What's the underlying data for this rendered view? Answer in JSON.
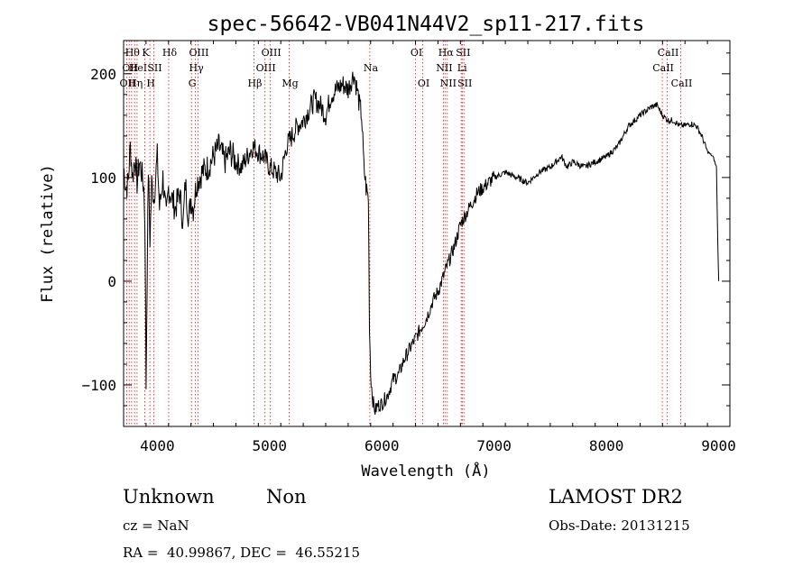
{
  "chart_data": {
    "type": "line",
    "title": "spec-56642-VB041N44V2_sp11-217.fits",
    "xlabel": "Wavelength (Å)",
    "ylabel": "Flux (relative)",
    "xlim": [
      3700,
      9100
    ],
    "ylim": [
      -140,
      232
    ],
    "xticks": [
      "4000",
      "5000",
      "6000",
      "7000",
      "8000",
      "9000"
    ],
    "yticks": [
      "−100",
      "0",
      "100",
      "200"
    ],
    "grid": false,
    "legend": "none",
    "line_color": "#000000",
    "marker_color": "#ff0000",
    "series": [
      {
        "x": [
          3700,
          3720,
          3740,
          3760,
          3780,
          3800,
          3820,
          3840,
          3860,
          3880,
          3890,
          3900,
          3920,
          3935,
          3950,
          3970,
          4000,
          4020,
          4050,
          4080,
          4100,
          4130,
          4160,
          4200,
          4230,
          4250,
          4280,
          4300,
          4320,
          4350,
          4400,
          4450,
          4500,
          4550,
          4600,
          4650,
          4700,
          4750,
          4800,
          4850,
          4900,
          4950,
          5000,
          5050,
          5100,
          5150,
          5200,
          5250,
          5300,
          5350,
          5400,
          5450,
          5500,
          5550,
          5600,
          5650,
          5700,
          5750,
          5780,
          5800,
          5820,
          5840,
          5860,
          5880,
          5890,
          5900,
          5920,
          5940,
          5960,
          6000,
          6050,
          6100,
          6150,
          6200,
          6250,
          6300,
          6350,
          6400,
          6450,
          6500,
          6550,
          6600,
          6650,
          6700,
          6750,
          6800,
          6850,
          6900,
          6950,
          7000,
          7100,
          7200,
          7300,
          7400,
          7500,
          7600,
          7650,
          7700,
          7800,
          7900,
          8000,
          8100,
          8200,
          8300,
          8400,
          8450,
          8500,
          8550,
          8600,
          8650,
          8700,
          8750,
          8800,
          8850,
          8900,
          8950,
          8980,
          8990,
          9000
        ],
        "y": [
          110,
          90,
          95,
          130,
          100,
          120,
          95,
          115,
          105,
          90,
          60,
          -100,
          110,
          40,
          95,
          80,
          120,
          70,
          100,
          60,
          90,
          80,
          70,
          85,
          55,
          95,
          60,
          80,
          70,
          95,
          105,
          110,
          120,
          130,
          115,
          125,
          115,
          110,
          120,
          130,
          125,
          120,
          110,
          105,
          100,
          130,
          140,
          150,
          155,
          165,
          175,
          170,
          160,
          180,
          185,
          190,
          185,
          200,
          185,
          170,
          160,
          110,
          90,
          80,
          -40,
          -90,
          -115,
          -125,
          -120,
          -118,
          -110,
          -95,
          -90,
          -75,
          -65,
          -55,
          -45,
          -35,
          -20,
          -10,
          5,
          20,
          35,
          55,
          65,
          75,
          85,
          90,
          95,
          100,
          105,
          100,
          95,
          105,
          110,
          120,
          110,
          115,
          110,
          115,
          120,
          130,
          150,
          160,
          168,
          170,
          160,
          155,
          155,
          150,
          150,
          152,
          150,
          140,
          125,
          120,
          110,
          50,
          0
        ]
      }
    ],
    "line_markers": [
      {
        "wavelength": 3727,
        "label": "OII",
        "row": 2
      },
      {
        "wavelength": 3750,
        "label": "OII",
        "row": 1
      },
      {
        "wavelength": 3771,
        "label": "Hθ",
        "row": 0
      },
      {
        "wavelength": 3798,
        "label": "Hη",
        "row": 2
      },
      {
        "wavelength": 3820,
        "label": "HeI",
        "row": 1
      },
      {
        "wavelength": 3889,
        "label": "K",
        "row": 0
      },
      {
        "wavelength": 3934,
        "label": "H",
        "row": 2
      },
      {
        "wavelength": 3969,
        "label": "SII",
        "row": 1
      },
      {
        "wavelength": 4102,
        "label": "Hδ",
        "row": 0
      },
      {
        "wavelength": 4304,
        "label": "G",
        "row": 2
      },
      {
        "wavelength": 4340,
        "label": "Hγ",
        "row": 1
      },
      {
        "wavelength": 4363,
        "label": "OIII",
        "row": 0
      },
      {
        "wavelength": 4861,
        "label": "Hβ",
        "row": 2
      },
      {
        "wavelength": 4959,
        "label": "OIII",
        "row": 1
      },
      {
        "wavelength": 5007,
        "label": "OIII",
        "row": 0
      },
      {
        "wavelength": 5175,
        "label": "Mg",
        "row": 2
      },
      {
        "wavelength": 5893,
        "label": "Na",
        "row": 1
      },
      {
        "wavelength": 6300,
        "label": "OI",
        "row": 0
      },
      {
        "wavelength": 6364,
        "label": "OI",
        "row": 2
      },
      {
        "wavelength": 6548,
        "label": "NII",
        "row": 1
      },
      {
        "wavelength": 6563,
        "label": "Hα",
        "row": 0
      },
      {
        "wavelength": 6583,
        "label": "NII",
        "row": 2
      },
      {
        "wavelength": 6707,
        "label": "Li",
        "row": 1
      },
      {
        "wavelength": 6716,
        "label": "SII",
        "row": 0
      },
      {
        "wavelength": 6731,
        "label": "SII",
        "row": 2
      },
      {
        "wavelength": 8498,
        "label": "CaII",
        "row": 1
      },
      {
        "wavelength": 8542,
        "label": "CaII",
        "row": 0
      },
      {
        "wavelength": 8662,
        "label": "CaII",
        "row": 2
      }
    ]
  },
  "info": {
    "class": "Unknown",
    "subclass": "Non",
    "survey": "LAMOST DR2",
    "cz": "cz = NaN",
    "obs_date": "Obs-Date: 20131215",
    "coords": "RA =  40.99867, DEC =  46.55215"
  }
}
